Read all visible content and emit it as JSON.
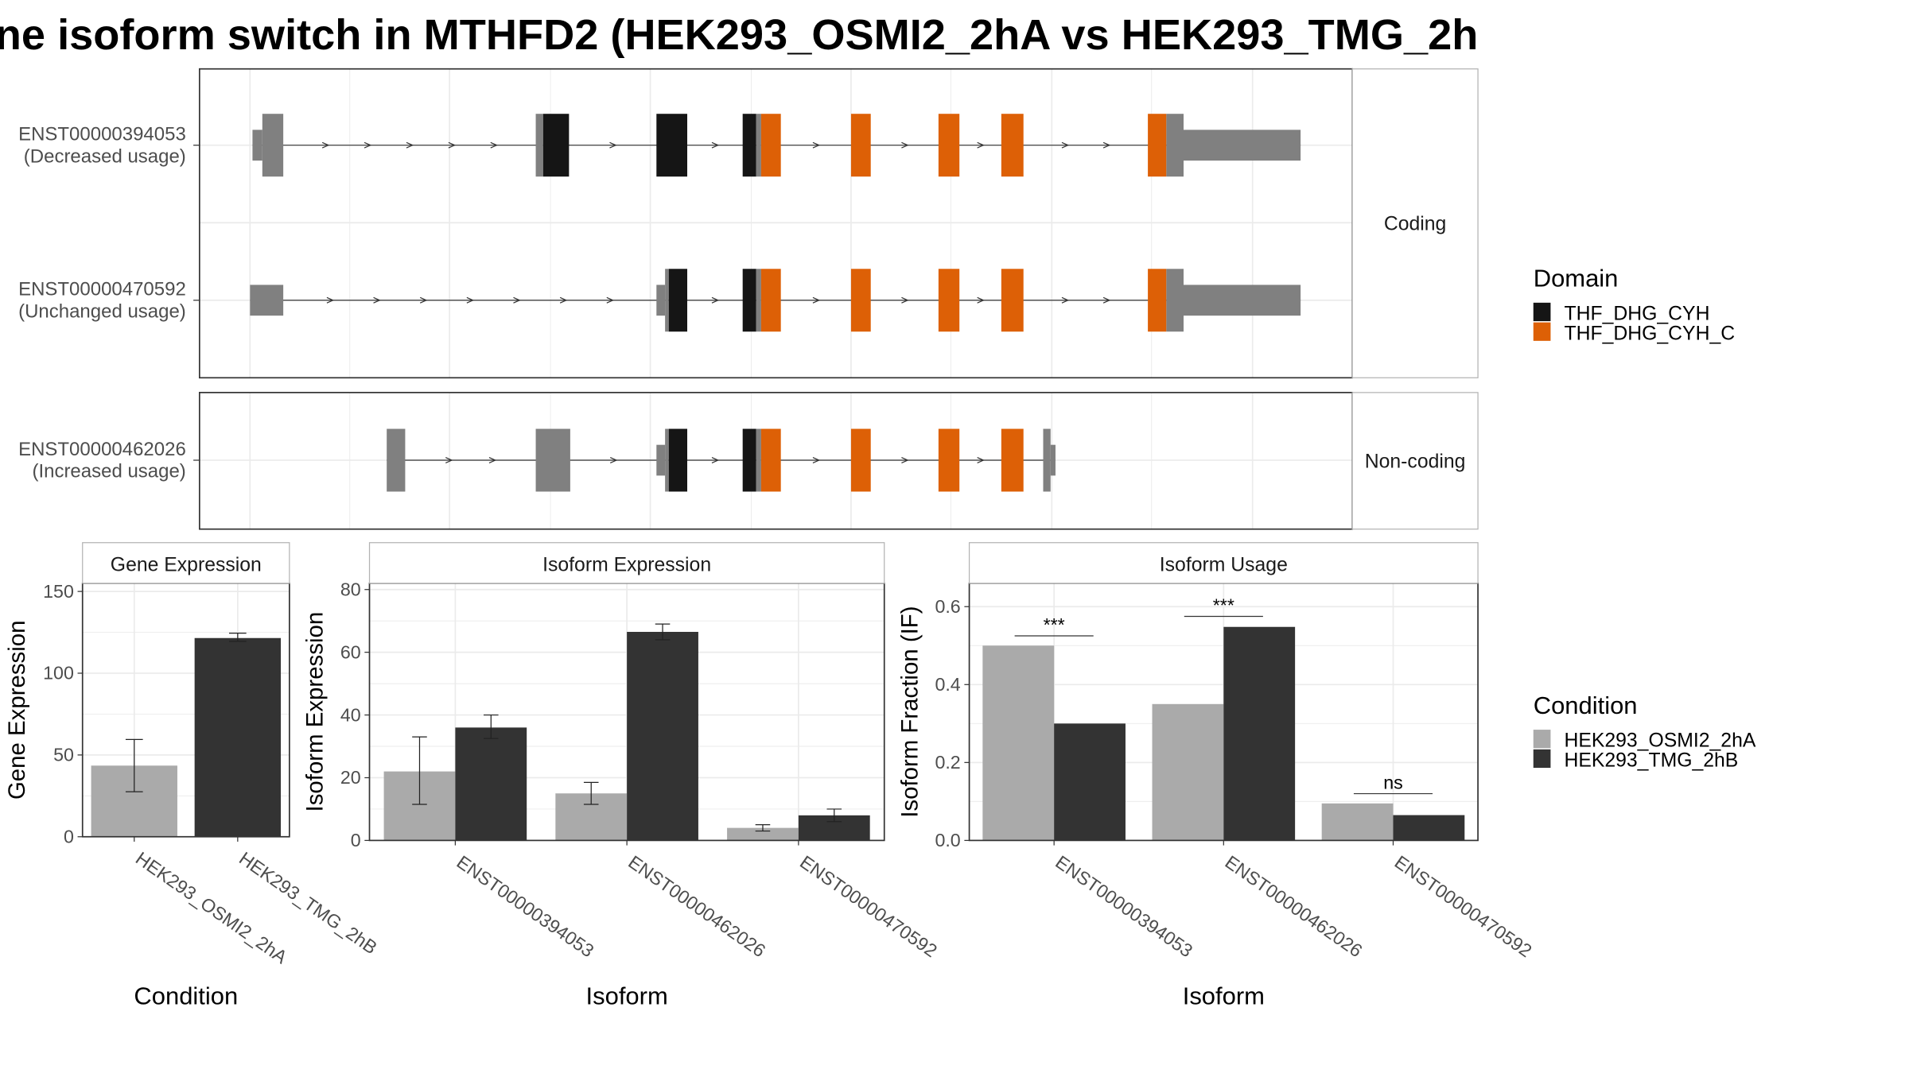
{
  "title": "ne isoform switch in MTHFD2 (HEK293_OSMI2_2hA vs HEK293_TMG_2h",
  "colors": {
    "utr": "#808080",
    "thf_dhg_cyh": "#151515",
    "thf_dhg_cyh_c": "#dd6006",
    "osmi": "#aaaaaa",
    "tmg": "#333333",
    "grid": "#ebebeb",
    "panel_border": "#333333",
    "strip_border": "#b3b3b3"
  },
  "structure": {
    "groups": [
      {
        "label": "Coding",
        "isoforms": [
          {
            "id": "ENST00000394053",
            "usage": "(Decreased usage)",
            "exons": [
              {
                "s": 205,
                "e": 213,
                "type": "utr"
              },
              {
                "s": 213,
                "e": 230,
                "type": "exon"
              },
              {
                "s": 435,
                "e": 441,
                "type": "exon"
              },
              {
                "s": 441,
                "e": 462,
                "type": "cyh"
              },
              {
                "s": 533,
                "e": 558,
                "type": "cyh"
              },
              {
                "s": 603,
                "e": 614,
                "type": "cyh"
              },
              {
                "s": 614,
                "e": 618,
                "type": "exon"
              },
              {
                "s": 618,
                "e": 634,
                "type": "cyhc"
              },
              {
                "s": 691,
                "e": 707,
                "type": "cyhc"
              },
              {
                "s": 762,
                "e": 779,
                "type": "cyhc"
              },
              {
                "s": 813,
                "e": 831,
                "type": "cyhc"
              },
              {
                "s": 932,
                "e": 947,
                "type": "cyhc"
              },
              {
                "s": 947,
                "e": 961,
                "type": "exon"
              },
              {
                "s": 961,
                "e": 1056,
                "type": "utr"
              }
            ]
          },
          {
            "id": "ENST00000470592",
            "usage": "(Unchanged usage)",
            "exons": [
              {
                "s": 203,
                "e": 230,
                "type": "utr"
              },
              {
                "s": 533,
                "e": 540,
                "type": "utr"
              },
              {
                "s": 540,
                "e": 543,
                "type": "exon"
              },
              {
                "s": 543,
                "e": 558,
                "type": "cyh"
              },
              {
                "s": 603,
                "e": 614,
                "type": "cyh"
              },
              {
                "s": 614,
                "e": 618,
                "type": "exon"
              },
              {
                "s": 618,
                "e": 634,
                "type": "cyhc"
              },
              {
                "s": 691,
                "e": 707,
                "type": "cyhc"
              },
              {
                "s": 762,
                "e": 779,
                "type": "cyhc"
              },
              {
                "s": 813,
                "e": 831,
                "type": "cyhc"
              },
              {
                "s": 932,
                "e": 947,
                "type": "cyhc"
              },
              {
                "s": 947,
                "e": 961,
                "type": "exon"
              },
              {
                "s": 961,
                "e": 1056,
                "type": "utr"
              }
            ]
          }
        ]
      },
      {
        "label": "Non-coding",
        "isoforms": [
          {
            "id": "ENST00000462026",
            "usage": "(Increased usage)",
            "exons": [
              {
                "s": 314,
                "e": 329,
                "type": "exon"
              },
              {
                "s": 435,
                "e": 463,
                "type": "exon"
              },
              {
                "s": 533,
                "e": 540,
                "type": "utr"
              },
              {
                "s": 540,
                "e": 543,
                "type": "exon"
              },
              {
                "s": 543,
                "e": 558,
                "type": "cyh"
              },
              {
                "s": 603,
                "e": 614,
                "type": "cyh"
              },
              {
                "s": 614,
                "e": 618,
                "type": "exon"
              },
              {
                "s": 618,
                "e": 634,
                "type": "cyhc"
              },
              {
                "s": 691,
                "e": 707,
                "type": "cyhc"
              },
              {
                "s": 762,
                "e": 779,
                "type": "cyhc"
              },
              {
                "s": 813,
                "e": 831,
                "type": "cyhc"
              },
              {
                "s": 847,
                "e": 853,
                "type": "exon"
              },
              {
                "s": 853,
                "e": 857,
                "type": "utr"
              }
            ]
          }
        ]
      }
    ]
  },
  "legends": {
    "domain": {
      "title": "Domain",
      "items": [
        {
          "label": "THF_DHG_CYH",
          "color": "#151515"
        },
        {
          "label": "THF_DHG_CYH_C",
          "color": "#dd6006"
        }
      ]
    },
    "condition": {
      "title": "Condition",
      "items": [
        {
          "label": "HEK293_OSMI2_2hA",
          "color": "#aaaaaa"
        },
        {
          "label": "HEK293_TMG_2hB",
          "color": "#333333"
        }
      ]
    }
  },
  "chart_data": [
    {
      "type": "bar",
      "strip": "Gene Expression",
      "xlabel": "Condition",
      "ylabel": "Gene Expression",
      "ylim": [
        0,
        155
      ],
      "yticks": [
        0,
        50,
        100,
        150
      ],
      "categories": [
        "HEK293_OSMI2_2hA",
        "HEK293_TMG_2hB"
      ],
      "values": [
        43.5,
        121.5
      ],
      "error_low": [
        27.5,
        119.5
      ],
      "error_high": [
        59.5,
        124.5
      ]
    },
    {
      "type": "bar",
      "strip": "Isoform Expression",
      "xlabel": "Isoform",
      "ylabel": "Isoform Expression",
      "ylim": [
        0,
        82
      ],
      "yticks": [
        0,
        20,
        40,
        60,
        80
      ],
      "categories": [
        "ENST00000394053",
        "ENST00000462026",
        "ENST00000470592"
      ],
      "series": [
        {
          "name": "HEK293_OSMI2_2hA",
          "values": [
            22,
            15,
            4
          ],
          "error_low": [
            11.5,
            11.5,
            3
          ],
          "error_high": [
            33,
            18.5,
            5
          ]
        },
        {
          "name": "HEK293_TMG_2hB",
          "values": [
            36,
            66.5,
            8
          ],
          "error_low": [
            32.5,
            64,
            6
          ],
          "error_high": [
            40,
            69,
            10
          ]
        }
      ]
    },
    {
      "type": "bar",
      "strip": "Isoform Usage",
      "xlabel": "Isoform",
      "ylabel": "Isoform Fraction (IF)",
      "ylim": [
        0,
        0.66
      ],
      "yticks": [
        0.0,
        0.2,
        0.4,
        0.6
      ],
      "ytick_labels": [
        "0.0",
        "0.2",
        "0.4",
        "0.6"
      ],
      "categories": [
        "ENST00000394053",
        "ENST00000462026",
        "ENST00000470592"
      ],
      "series": [
        {
          "name": "HEK293_OSMI2_2hA",
          "values": [
            0.5,
            0.35,
            0.095
          ]
        },
        {
          "name": "HEK293_TMG_2hB",
          "values": [
            0.3,
            0.548,
            0.065
          ]
        }
      ],
      "annotations": [
        {
          "category": "ENST00000394053",
          "text": "***",
          "y": 0.525
        },
        {
          "category": "ENST00000462026",
          "text": "***",
          "y": 0.575
        },
        {
          "category": "ENST00000470592",
          "text": "ns",
          "y": 0.12
        }
      ]
    }
  ]
}
